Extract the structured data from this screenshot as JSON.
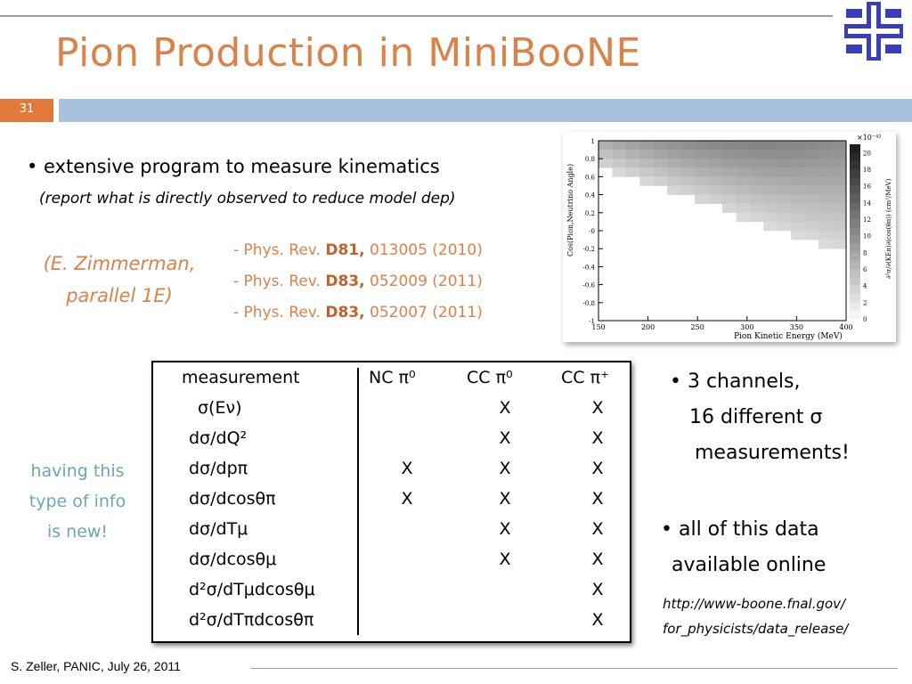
{
  "slide": {
    "title": "Pion Production in MiniBooNE",
    "number": "31",
    "bullet1": "• extensive program to measure kinematics",
    "bullet1_sub": "(report what is directly observed to reduce model dep)",
    "author_note": [
      "(E. Zimmerman,",
      "parallel 1E)"
    ],
    "refs": [
      {
        "pre": "- Phys. Rev. ",
        "vol": "D81,",
        "post": " 013005 (2010)"
      },
      {
        "pre": "- Phys. Rev. ",
        "vol": "D83,",
        "post": " 052009 (2011)"
      },
      {
        "pre": "- Phys. Rev. ",
        "vol": "D83,",
        "post": " 052007 (2011)"
      }
    ],
    "side_note": [
      "having this",
      "type of info",
      "is new!"
    ],
    "right_bullets": {
      "b1_line1": "• 3 channels,",
      "b1_line2": "16 different σ",
      "b1_line3": "measurements!",
      "b2_line1": "• all of this data",
      "b2_line2": "available online",
      "url_line1": "http://www-boone.fnal.gov/",
      "url_line2": "for_physicists/data_release/"
    },
    "footer": "S. Zeller, PANIC, July 26, 2011"
  },
  "table": {
    "header": [
      "measurement",
      "NC π⁰",
      "CC π⁰",
      "CC π⁺"
    ],
    "rows": [
      {
        "m": "σ(Eν)",
        "marks": [
          "",
          "X",
          "X"
        ]
      },
      {
        "m": "dσ/dQ²",
        "marks": [
          "",
          "X",
          "X"
        ]
      },
      {
        "m": "dσ/dpπ",
        "marks": [
          "X",
          "X",
          "X"
        ]
      },
      {
        "m": "dσ/dcosθπ",
        "marks": [
          "X",
          "X",
          "X"
        ]
      },
      {
        "m": "dσ/dTμ",
        "marks": [
          "",
          "X",
          "X"
        ]
      },
      {
        "m": "dσ/dcosθμ",
        "marks": [
          "",
          "X",
          "X"
        ]
      },
      {
        "m": "d²σ/dTμdcosθμ",
        "marks": [
          "",
          "",
          "X"
        ]
      },
      {
        "m": "d²σ/dTπdcosθπ",
        "marks": [
          "",
          "",
          "X"
        ]
      }
    ]
  },
  "chart_data": {
    "type": "heatmap",
    "xlabel": "Pion Kinetic Energy (MeV)",
    "ylabel": "Cos(Pion,Neutrino Angle)",
    "zlabel": "∂²σ/∂(KEπ)∂(cos(θπ)) (cm²/MeV)",
    "zscale_label": "×10⁻⁴²",
    "xticks": [
      "150",
      "200",
      "250",
      "300",
      "350",
      "400"
    ],
    "yticks": [
      "1",
      "0.8",
      "0.6",
      "0.4",
      "0.2",
      "-0",
      "-0.2",
      "-0.4",
      "-0.6",
      "-0.8",
      "-1"
    ],
    "zticks": [
      "0",
      "2",
      "4",
      "6",
      "8",
      "10",
      "12",
      "14",
      "16",
      "18",
      "20"
    ],
    "xlim": [
      150,
      400
    ],
    "ylim": [
      -1,
      1
    ],
    "zlim": [
      0,
      21
    ]
  }
}
